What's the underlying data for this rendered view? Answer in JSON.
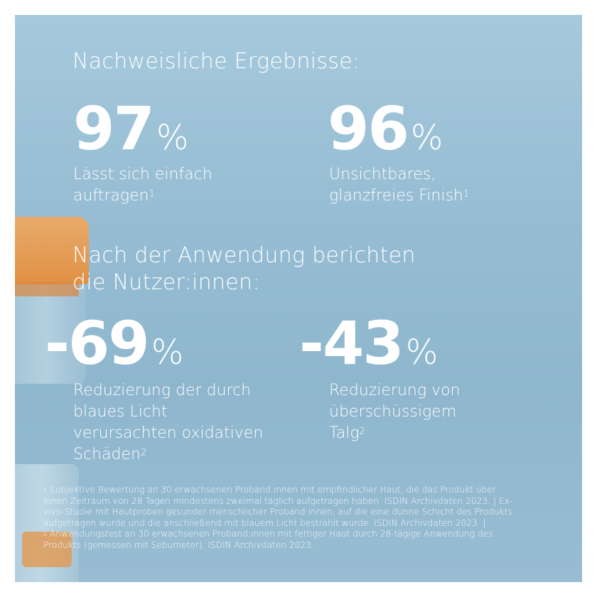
{
  "heading1": "Nachweisliche Ergebnisse:",
  "stat1": {
    "value": "97",
    "unit": "%",
    "label_line1": "Lässt sich einfach",
    "label_line2": "auftragen",
    "ref": "1"
  },
  "stat2": {
    "value": "96",
    "unit": "%",
    "label_line1": "Unsichtbares,",
    "label_line2": "glanzfreies Finish",
    "ref": "1"
  },
  "heading2_line1": "Nach der Anwendung berichten",
  "heading2_line2": "die Nutzer:innen:",
  "stat3": {
    "value": "-69",
    "unit": "%",
    "label_line1": "Reduzierung der durch",
    "label_line2": "blaues Licht",
    "label_line3": "verursachten oxidativen",
    "label_line4": "Schäden",
    "ref": "2"
  },
  "stat4": {
    "value": "-43",
    "unit": "%",
    "label_line1": "Reduzierung von",
    "label_line2": "überschüssigem",
    "label_line3": "Talg",
    "ref": "2"
  },
  "footnote": {
    "ref1": "1",
    "line1": "Subjektive Bewertung an 30 erwachsenen Proband:innen mit empfindlicher Haut, die das Produkt über",
    "line2": "einen Zeitraum von 28 Tagen mindestens zweimal täglich aufgetragen haben. ISDIN Archivdaten 2023. | Ex-",
    "line3": "vivo-Studie mit Hautproben gesunder menschlicher Proband:innen, auf die eine dünne Schicht des Produkts",
    "line4": "aufgetragen wurde und die anschließend mit blauem Licht bestrahlt wurde. ISDIN Archivdaten 2023. |",
    "ref2": "2",
    "line5": "Anwendungstest an 30 erwachsenen Proband:innen mit fettiger Haut durch 28-tägige Anwendung des",
    "line6": "Produkts (gemessen mit Sebumeter). ISDIN Archivdaten 2023."
  }
}
